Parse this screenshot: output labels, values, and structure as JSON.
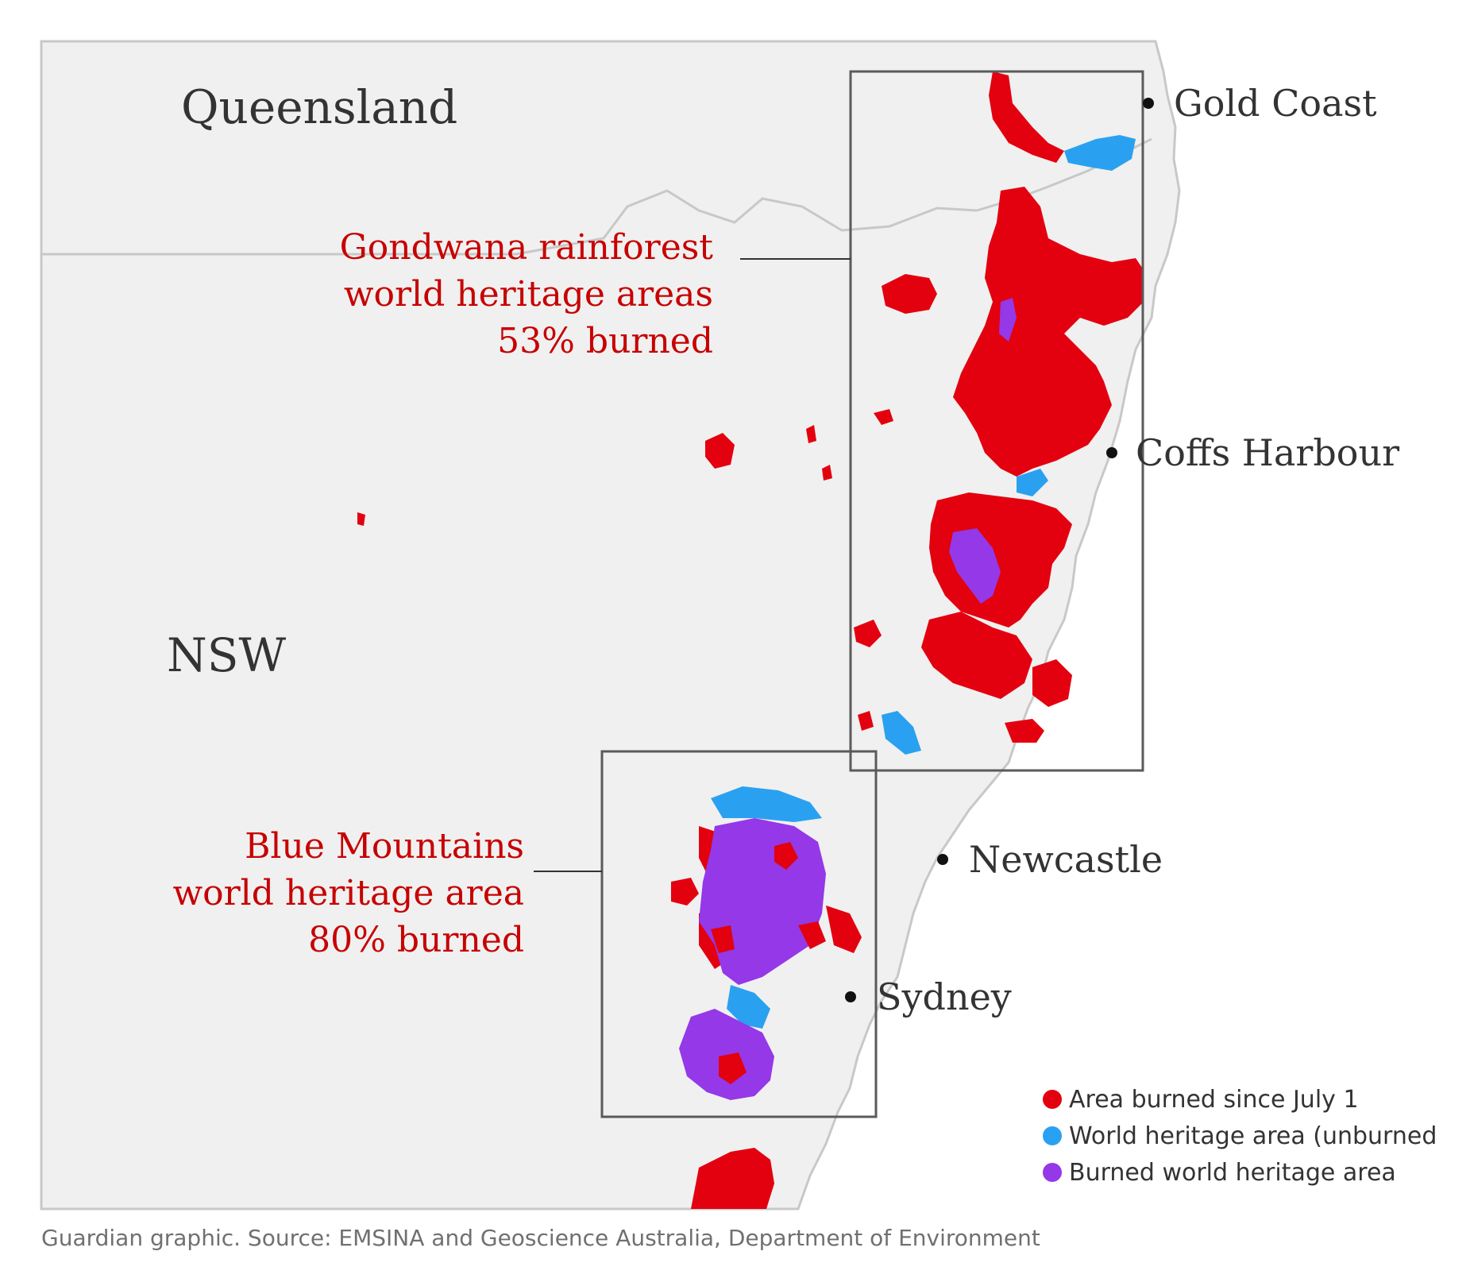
{
  "regions": {
    "queensland": "Queensland",
    "nsw": "NSW"
  },
  "cities": {
    "gold_coast": "Gold Coast",
    "coffs_harbour": "Coffs Harbour",
    "newcastle": "Newcastle",
    "sydney": "Sydney"
  },
  "annotations": {
    "gondwana": [
      "Gondwana rainforest",
      "world heritage areas",
      "53% burned"
    ],
    "blue_mountains": [
      "Blue Mountains",
      "world heritage area",
      "80% burned"
    ]
  },
  "legend": [
    {
      "label": "Area burned since July 1",
      "color": "#e3000f"
    },
    {
      "label": "World heritage area (unburned",
      "color": "#2aa1f0"
    },
    {
      "label": "Burned world heritage area",
      "color": "#9438e8"
    }
  ],
  "source": "Guardian graphic. Source: EMSINA and Geoscience Australia, Department of Environment",
  "colors": {
    "land": "#f0f0f0",
    "coast": "#c8c8c8",
    "burned": "#e3000f",
    "heritage_unburned": "#2aa1f0",
    "heritage_burned": "#9438e8",
    "annotation": "#c70000"
  }
}
